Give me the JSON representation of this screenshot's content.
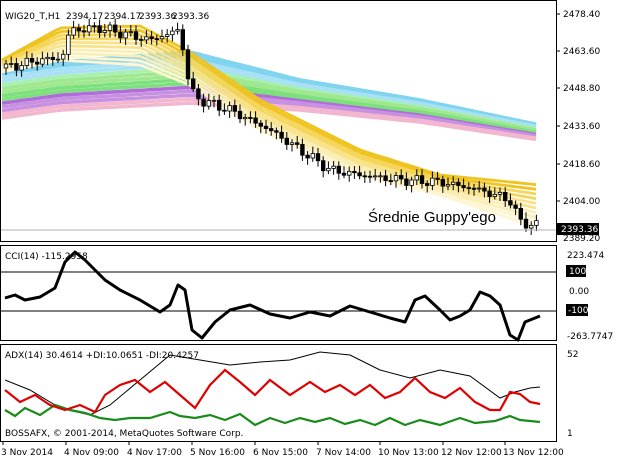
{
  "main": {
    "symbol_label": "WIG20_T,H1",
    "ohlc": [
      "2394.17",
      "2394.17",
      "2393.36",
      "2393.36"
    ],
    "annotation": "Średnie Guppy'ego",
    "price_ticks": [
      "2478.40",
      "2463.60",
      "2448.80",
      "2433.60",
      "2418.60",
      "2404.00",
      "2389.20"
    ],
    "current_price": "2393.36"
  },
  "cci": {
    "label": "CCI(14) -115.2958",
    "ticks": [
      "223.474",
      "100",
      "0.00",
      "-100",
      "-263.7747"
    ]
  },
  "adx": {
    "label": "ADX(14) 30.4614 +DI:10.0651 -DI:20.4257",
    "ticks": [
      "52",
      "1"
    ],
    "copyright": "BOSSAFX, © 2001-2014, MetaQuotes Software Corp."
  },
  "time_axis": [
    "3 Nov 2014",
    "4 Nov 09:00",
    "4 Nov 17:00",
    "5 Nov 16:00",
    "6 Nov 15:00",
    "7 Nov 14:00",
    "10 Nov 13:00",
    "12 Nov 12:00",
    "13 Nov 12:00"
  ],
  "colors": {
    "candle": "#000000",
    "guppy_short": "#f0c420",
    "guppy_long": "#7fd4f0",
    "cci_line": "#000000",
    "adx_line": "#000000",
    "plus_di": "#1a8a1a",
    "minus_di": "#e00000"
  }
}
